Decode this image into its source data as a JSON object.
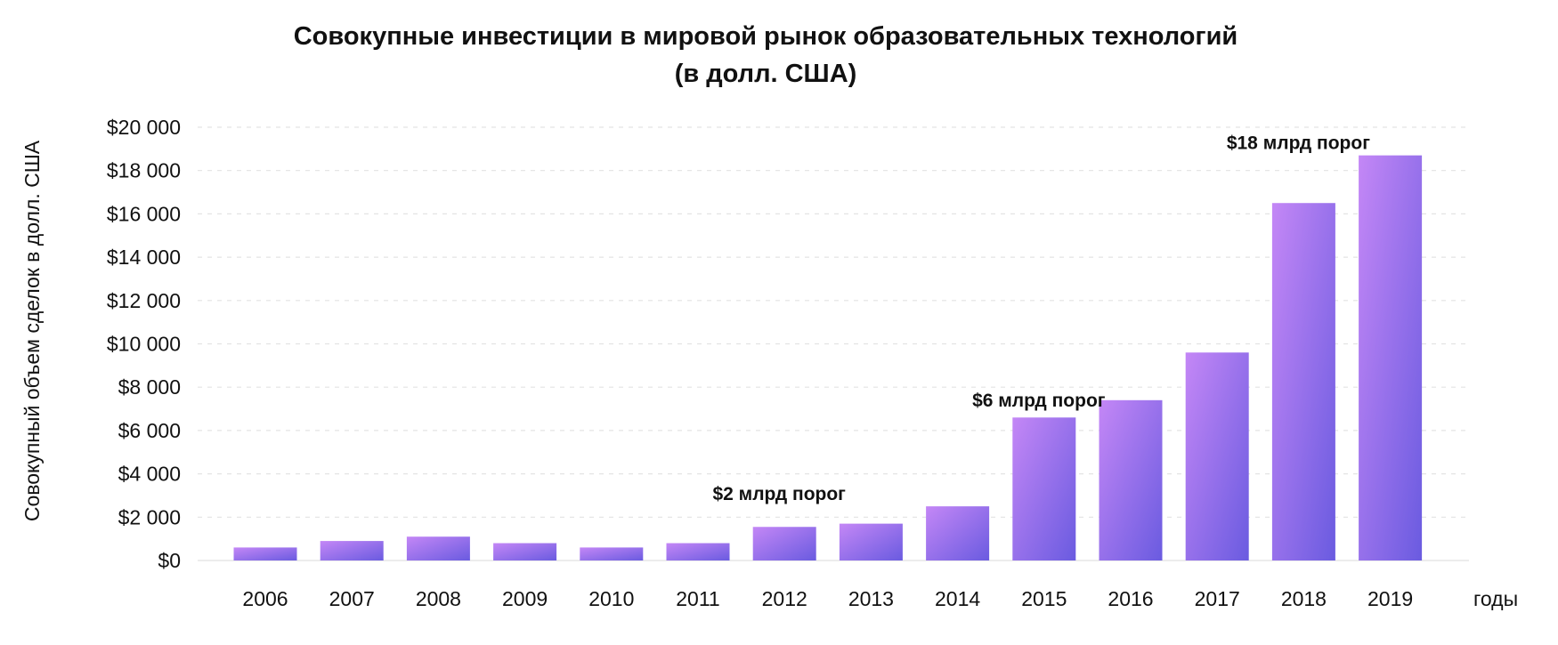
{
  "chart_data": {
    "type": "bar",
    "title": "Совокупные инвестиции в мировой рынок образовательных технологий",
    "subtitle": "(в долл. США)",
    "xlabel": "годы",
    "ylabel": "Совокупный объем сделок в долл. США",
    "categories": [
      "2006",
      "2007",
      "2008",
      "2009",
      "2010",
      "2011",
      "2012",
      "2013",
      "2014",
      "2015",
      "2016",
      "2017",
      "2018",
      "2019"
    ],
    "values": [
      600,
      900,
      1100,
      800,
      600,
      800,
      1550,
      1700,
      2500,
      6600,
      7400,
      9600,
      16500,
      18700
    ],
    "ylim": [
      0,
      20000
    ],
    "yticks": [
      0,
      2000,
      4000,
      6000,
      8000,
      10000,
      12000,
      14000,
      16000,
      18000,
      20000
    ],
    "ytick_labels": [
      "$0",
      "$2 000",
      "$4 000",
      "$6 000",
      "$8 000",
      "$10 000",
      "$12 000",
      "$14 000",
      "$16 000",
      "$18 000",
      "$20 000"
    ],
    "grid": true,
    "annotations": [
      {
        "text": "$2 млрд порог",
        "category": "2012",
        "y": 2800
      },
      {
        "text": "$6 млрд порог",
        "category": "2015",
        "y": 7100
      },
      {
        "text": "$18 млрд порог",
        "category": "2018",
        "y": 19000
      }
    ],
    "colors": {
      "bar_top": "#c487f6",
      "bar_bottom": "#6a5be0",
      "grid": "#e3e3e3",
      "baseline": "#ececec"
    }
  }
}
